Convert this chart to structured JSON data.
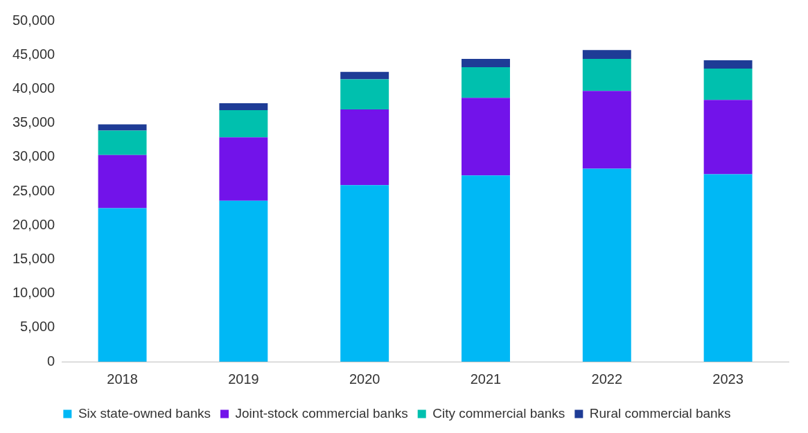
{
  "chart_data": {
    "type": "bar",
    "stacked": true,
    "categories": [
      "2018",
      "2019",
      "2020",
      "2021",
      "2022",
      "2023"
    ],
    "series": [
      {
        "name": "Six state-owned banks",
        "color": "#00b8f5",
        "values": [
          22500,
          23600,
          25900,
          27300,
          28300,
          27500
        ]
      },
      {
        "name": "Joint-stock commercial banks",
        "color": "#7213ea",
        "values": [
          7800,
          9300,
          11100,
          11400,
          11400,
          10900
        ]
      },
      {
        "name": "City commercial banks",
        "color": "#00c0ae",
        "values": [
          3600,
          4000,
          4400,
          4500,
          4700,
          4600
        ]
      },
      {
        "name": "Rural commercial banks",
        "color": "#1e3c96",
        "values": [
          900,
          1000,
          1100,
          1200,
          1300,
          1200
        ]
      }
    ],
    "ylim": [
      0,
      50000
    ],
    "yticks": [
      {
        "value": 0,
        "label": "0"
      },
      {
        "value": 5000,
        "label": "5,000"
      },
      {
        "value": 10000,
        "label": "10,000"
      },
      {
        "value": 15000,
        "label": "15,000"
      },
      {
        "value": 20000,
        "label": "20,000"
      },
      {
        "value": 25000,
        "label": "25,000"
      },
      {
        "value": 30000,
        "label": "30,000"
      },
      {
        "value": 35000,
        "label": "35,000"
      },
      {
        "value": 40000,
        "label": "40,000"
      },
      {
        "value": 45000,
        "label": "45,000"
      },
      {
        "value": 50000,
        "label": "50,000"
      }
    ],
    "grid": false,
    "legend": "bottom"
  }
}
